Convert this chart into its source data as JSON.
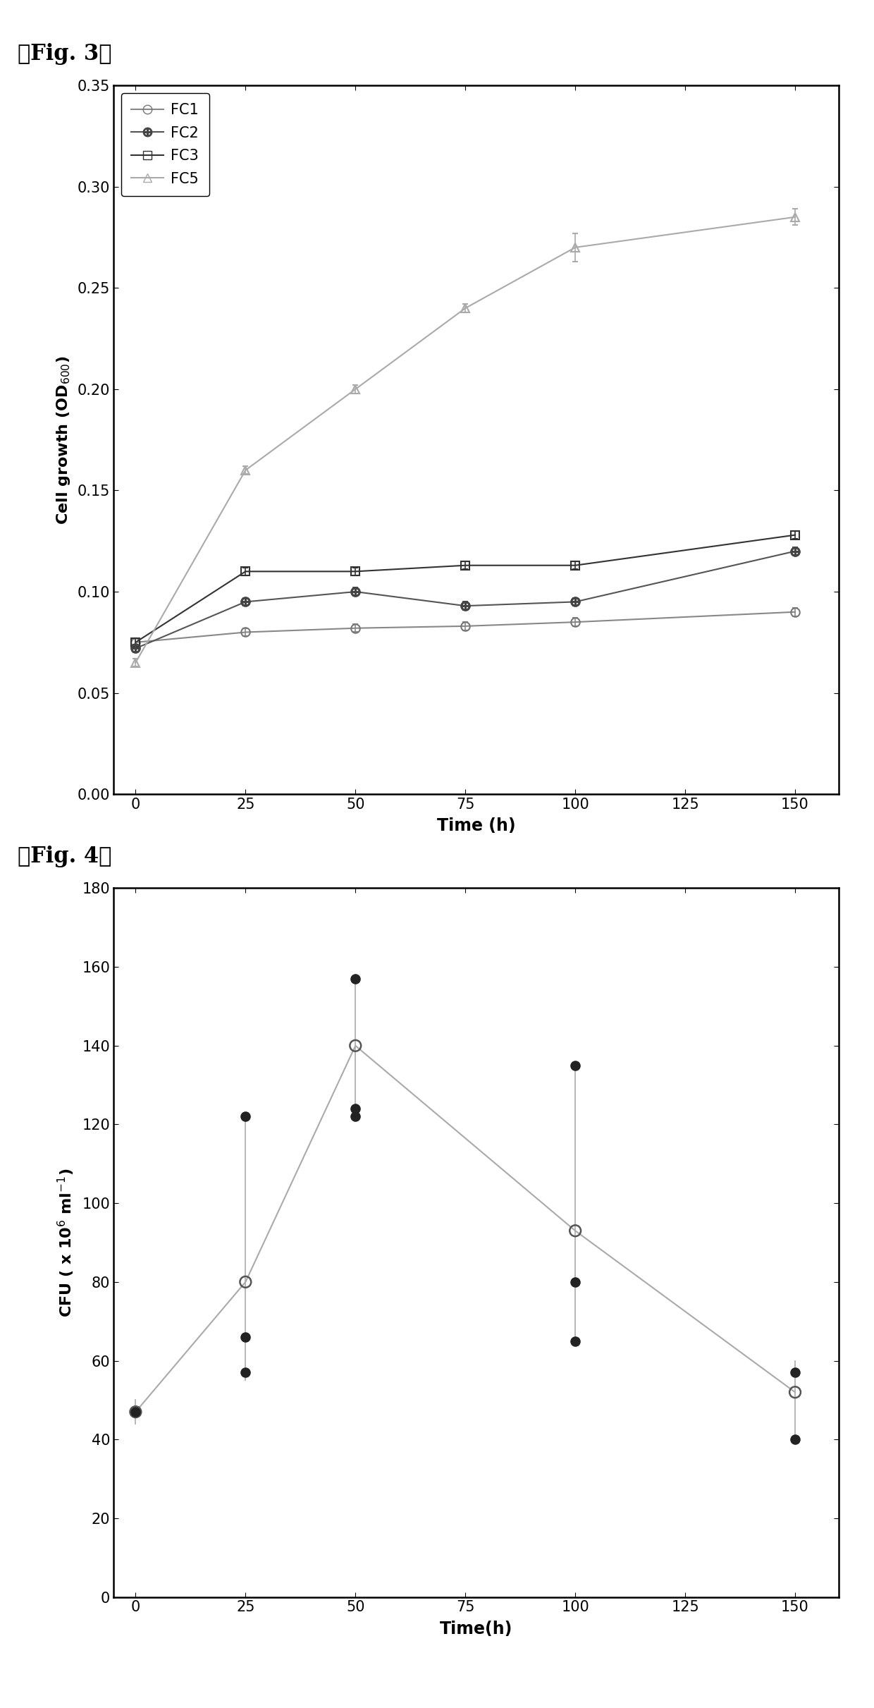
{
  "fig3": {
    "xlabel": "Time (h)",
    "xlim": [
      -5,
      160
    ],
    "ylim": [
      0,
      0.35
    ],
    "xticks": [
      0,
      25,
      50,
      75,
      100,
      125,
      150
    ],
    "yticks": [
      0,
      0.05,
      0.1,
      0.15,
      0.2,
      0.25,
      0.3,
      0.35
    ],
    "series": {
      "FC1": {
        "x": [
          0,
          25,
          50,
          75,
          100,
          150
        ],
        "y": [
          0.075,
          0.08,
          0.082,
          0.083,
          0.085,
          0.09
        ],
        "yerr": [
          0.002,
          0.002,
          0.002,
          0.002,
          0.002,
          0.002
        ],
        "marker": "o",
        "color": "#777777",
        "linecolor": "#888888"
      },
      "FC2": {
        "x": [
          0,
          25,
          50,
          75,
          100,
          150
        ],
        "y": [
          0.072,
          0.095,
          0.1,
          0.093,
          0.095,
          0.12
        ],
        "yerr": [
          0.002,
          0.002,
          0.002,
          0.002,
          0.002,
          0.002
        ],
        "marker": "o",
        "color": "#444444",
        "linecolor": "#555555"
      },
      "FC3": {
        "x": [
          0,
          25,
          50,
          75,
          100,
          150
        ],
        "y": [
          0.075,
          0.11,
          0.11,
          0.113,
          0.113,
          0.128
        ],
        "yerr": [
          0.002,
          0.002,
          0.002,
          0.002,
          0.002,
          0.002
        ],
        "marker": "s",
        "color": "#333333",
        "linecolor": "#333333"
      },
      "FC5": {
        "x": [
          0,
          25,
          50,
          75,
          100,
          150
        ],
        "y": [
          0.065,
          0.16,
          0.2,
          0.24,
          0.27,
          0.285
        ],
        "yerr": [
          0.002,
          0.002,
          0.002,
          0.002,
          0.007,
          0.004
        ],
        "marker": "^",
        "color": "#aaaaaa",
        "linecolor": "#aaaaaa"
      }
    }
  },
  "fig4": {
    "xlabel": "Time(h)",
    "xlim": [
      -5,
      160
    ],
    "ylim": [
      0,
      180
    ],
    "xticks": [
      0,
      25,
      50,
      75,
      100,
      125,
      150
    ],
    "yticks": [
      0,
      20,
      40,
      60,
      80,
      100,
      120,
      140,
      160,
      180
    ],
    "mean_x": [
      0,
      25,
      50,
      100,
      150
    ],
    "mean_y": [
      47,
      80,
      140,
      93,
      52
    ],
    "mean_yerr_low": [
      3,
      25,
      18,
      28,
      12
    ],
    "mean_yerr_high": [
      3,
      42,
      18,
      42,
      8
    ],
    "scatter_x": [
      0,
      25,
      25,
      25,
      50,
      50,
      50,
      100,
      100,
      100,
      150,
      150
    ],
    "scatter_y": [
      47,
      122,
      66,
      57,
      157,
      124,
      122,
      135,
      80,
      65,
      57,
      40
    ]
  }
}
